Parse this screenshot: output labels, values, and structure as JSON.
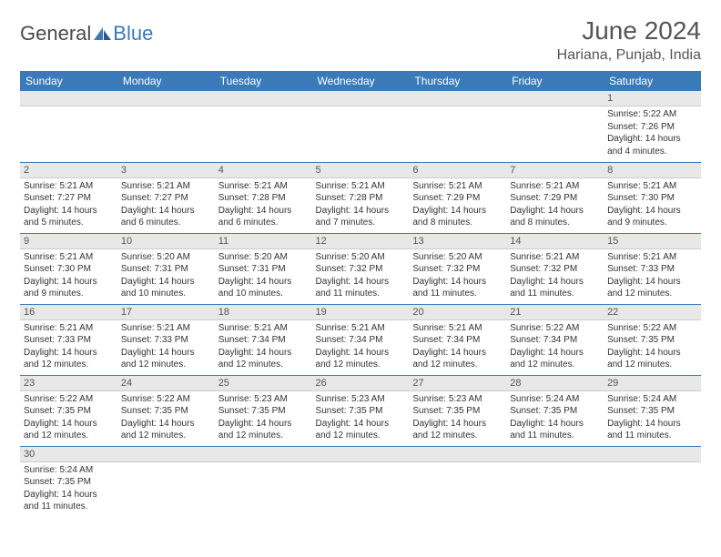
{
  "logo": {
    "text1": "General",
    "text2": "Blue"
  },
  "title": "June 2024",
  "location": "Hariana, Punjab, India",
  "colors": {
    "header_bg": "#3a7ab8",
    "header_text": "#ffffff",
    "daynum_bg": "#e8e8e8",
    "row_divider": "#3a7ab8",
    "body_text": "#333333",
    "title_text": "#555555"
  },
  "weekdays": [
    "Sunday",
    "Monday",
    "Tuesday",
    "Wednesday",
    "Thursday",
    "Friday",
    "Saturday"
  ],
  "days": [
    {
      "n": 1,
      "sr": "5:22 AM",
      "ss": "7:26 PM",
      "dl": "14 hours and 4 minutes."
    },
    {
      "n": 2,
      "sr": "5:21 AM",
      "ss": "7:27 PM",
      "dl": "14 hours and 5 minutes."
    },
    {
      "n": 3,
      "sr": "5:21 AM",
      "ss": "7:27 PM",
      "dl": "14 hours and 6 minutes."
    },
    {
      "n": 4,
      "sr": "5:21 AM",
      "ss": "7:28 PM",
      "dl": "14 hours and 6 minutes."
    },
    {
      "n": 5,
      "sr": "5:21 AM",
      "ss": "7:28 PM",
      "dl": "14 hours and 7 minutes."
    },
    {
      "n": 6,
      "sr": "5:21 AM",
      "ss": "7:29 PM",
      "dl": "14 hours and 8 minutes."
    },
    {
      "n": 7,
      "sr": "5:21 AM",
      "ss": "7:29 PM",
      "dl": "14 hours and 8 minutes."
    },
    {
      "n": 8,
      "sr": "5:21 AM",
      "ss": "7:30 PM",
      "dl": "14 hours and 9 minutes."
    },
    {
      "n": 9,
      "sr": "5:21 AM",
      "ss": "7:30 PM",
      "dl": "14 hours and 9 minutes."
    },
    {
      "n": 10,
      "sr": "5:20 AM",
      "ss": "7:31 PM",
      "dl": "14 hours and 10 minutes."
    },
    {
      "n": 11,
      "sr": "5:20 AM",
      "ss": "7:31 PM",
      "dl": "14 hours and 10 minutes."
    },
    {
      "n": 12,
      "sr": "5:20 AM",
      "ss": "7:32 PM",
      "dl": "14 hours and 11 minutes."
    },
    {
      "n": 13,
      "sr": "5:20 AM",
      "ss": "7:32 PM",
      "dl": "14 hours and 11 minutes."
    },
    {
      "n": 14,
      "sr": "5:21 AM",
      "ss": "7:32 PM",
      "dl": "14 hours and 11 minutes."
    },
    {
      "n": 15,
      "sr": "5:21 AM",
      "ss": "7:33 PM",
      "dl": "14 hours and 12 minutes."
    },
    {
      "n": 16,
      "sr": "5:21 AM",
      "ss": "7:33 PM",
      "dl": "14 hours and 12 minutes."
    },
    {
      "n": 17,
      "sr": "5:21 AM",
      "ss": "7:33 PM",
      "dl": "14 hours and 12 minutes."
    },
    {
      "n": 18,
      "sr": "5:21 AM",
      "ss": "7:34 PM",
      "dl": "14 hours and 12 minutes."
    },
    {
      "n": 19,
      "sr": "5:21 AM",
      "ss": "7:34 PM",
      "dl": "14 hours and 12 minutes."
    },
    {
      "n": 20,
      "sr": "5:21 AM",
      "ss": "7:34 PM",
      "dl": "14 hours and 12 minutes."
    },
    {
      "n": 21,
      "sr": "5:22 AM",
      "ss": "7:34 PM",
      "dl": "14 hours and 12 minutes."
    },
    {
      "n": 22,
      "sr": "5:22 AM",
      "ss": "7:35 PM",
      "dl": "14 hours and 12 minutes."
    },
    {
      "n": 23,
      "sr": "5:22 AM",
      "ss": "7:35 PM",
      "dl": "14 hours and 12 minutes."
    },
    {
      "n": 24,
      "sr": "5:22 AM",
      "ss": "7:35 PM",
      "dl": "14 hours and 12 minutes."
    },
    {
      "n": 25,
      "sr": "5:23 AM",
      "ss": "7:35 PM",
      "dl": "14 hours and 12 minutes."
    },
    {
      "n": 26,
      "sr": "5:23 AM",
      "ss": "7:35 PM",
      "dl": "14 hours and 12 minutes."
    },
    {
      "n": 27,
      "sr": "5:23 AM",
      "ss": "7:35 PM",
      "dl": "14 hours and 12 minutes."
    },
    {
      "n": 28,
      "sr": "5:24 AM",
      "ss": "7:35 PM",
      "dl": "14 hours and 11 minutes."
    },
    {
      "n": 29,
      "sr": "5:24 AM",
      "ss": "7:35 PM",
      "dl": "14 hours and 11 minutes."
    },
    {
      "n": 30,
      "sr": "5:24 AM",
      "ss": "7:35 PM",
      "dl": "14 hours and 11 minutes."
    }
  ],
  "labels": {
    "sunrise": "Sunrise:",
    "sunset": "Sunset:",
    "daylight": "Daylight:"
  },
  "layout": {
    "first_day_column": 6,
    "total_days": 30,
    "columns": 7
  }
}
